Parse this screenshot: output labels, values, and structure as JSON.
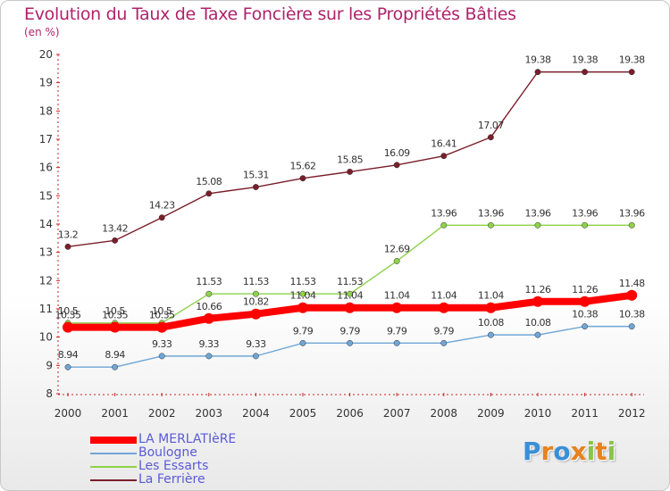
{
  "title": "Evolution du Taux de Taxe Foncière sur les Propriétés Bâties",
  "subtitle": "(en %)",
  "logo": {
    "text": "Proxiti",
    "letters": [
      "P",
      "r",
      "o",
      "x",
      "i",
      "t",
      "i"
    ],
    "colors": [
      "#3a8fd6",
      "#e8821e",
      "#3a8fd6",
      "#e8821e",
      "#8bc34a",
      "#e8821e",
      "#8bc34a"
    ]
  },
  "chart_data": {
    "type": "line",
    "title": "Evolution du Taux de Taxe Foncière sur les Propriétés Bâties",
    "ylabel": "(en %)",
    "xlabel": "",
    "ylim": [
      8,
      20
    ],
    "yticks": [
      "8",
      "9",
      "10",
      "11",
      "12",
      "13",
      "14",
      "15",
      "16",
      "17",
      "18",
      "19",
      "20"
    ],
    "grid": false,
    "legend_position": "bottom-left",
    "categories": [
      "2000",
      "2001",
      "2002",
      "2003",
      "2004",
      "2005",
      "2006",
      "2007",
      "2008",
      "2009",
      "2010",
      "2011",
      "2012"
    ],
    "series": [
      {
        "name": "La Ferrière",
        "color": "#7a1e2a",
        "values": [
          13.2,
          13.42,
          14.23,
          15.08,
          15.31,
          15.62,
          15.85,
          16.09,
          16.41,
          17.07,
          19.38,
          19.38,
          19.38
        ],
        "labels": [
          "13.2",
          "13.42",
          "14.23",
          "15.08",
          "15.31",
          "15.62",
          "15.85",
          "16.09",
          "16.41",
          "17.07",
          "19.38",
          "19.38",
          "19.38"
        ]
      },
      {
        "name": "Les Essarts",
        "color": "#8ed14a",
        "values": [
          10.5,
          10.5,
          10.5,
          11.53,
          11.53,
          11.53,
          11.53,
          12.69,
          13.96,
          13.96,
          13.96,
          13.96,
          13.96
        ],
        "labels": [
          "10.5",
          "10.5",
          "10.5",
          "11.53",
          "11.53",
          "11.53",
          "11.53",
          "12.69",
          "13.96",
          "13.96",
          "13.96",
          "13.96",
          "13.96"
        ]
      },
      {
        "name": "Boulogne",
        "color": "#6fa6d6",
        "values": [
          8.94,
          8.94,
          9.33,
          9.33,
          9.33,
          9.79,
          9.79,
          9.79,
          9.79,
          10.08,
          10.08,
          10.38,
          10.38
        ],
        "labels": [
          "8.94",
          "8.94",
          "9.33",
          "9.33",
          "9.33",
          "9.79",
          "9.79",
          "9.79",
          "9.79",
          "10.08",
          "10.08",
          "10.38",
          "10.38"
        ]
      },
      {
        "name": "LA MERLATIèRE",
        "color": "#ff0000",
        "values": [
          10.35,
          10.35,
          10.35,
          10.66,
          10.82,
          11.04,
          11.04,
          11.04,
          11.04,
          11.04,
          11.26,
          11.26,
          11.48
        ],
        "labels": [
          "10.35",
          "10.35",
          "10.35",
          "10.66",
          "10.82",
          "11.04",
          "11.04",
          "11.04",
          "11.04",
          "11.04",
          "11.26",
          "11.26",
          "11.48"
        ]
      }
    ],
    "legend": [
      "LA MERLATIèRE",
      "Boulogne",
      "Les Essarts",
      "La Ferrière"
    ]
  }
}
